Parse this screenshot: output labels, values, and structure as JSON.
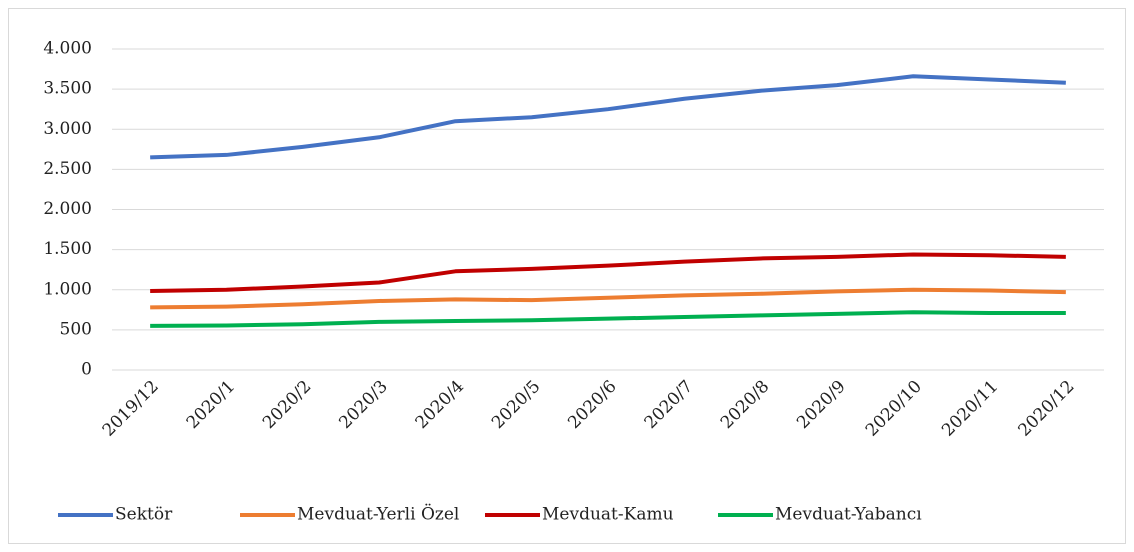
{
  "chart_data": {
    "type": "line",
    "categories": [
      "2019/12",
      "2020/1",
      "2020/2",
      "2020/3",
      "2020/4",
      "2020/5",
      "2020/6",
      "2020/7",
      "2020/8",
      "2020/9",
      "2020/10",
      "2020/11",
      "2020/12"
    ],
    "series": [
      {
        "name": "Sektör",
        "color": "#4472c4",
        "values": [
          2650,
          2680,
          2780,
          2900,
          3100,
          3150,
          3250,
          3380,
          3480,
          3550,
          3660,
          3620,
          3580
        ]
      },
      {
        "name": "Mevduat-Yerli Özel",
        "color": "#ed7d31",
        "values": [
          780,
          790,
          820,
          860,
          880,
          870,
          900,
          930,
          950,
          980,
          1000,
          990,
          970
        ]
      },
      {
        "name": "Mevduat-Kamu",
        "color": "#c00000",
        "values": [
          985,
          1000,
          1040,
          1090,
          1230,
          1260,
          1300,
          1350,
          1390,
          1410,
          1440,
          1430,
          1410
        ]
      },
      {
        "name": "Mevduat-Yabancı",
        "color": "#00b050",
        "values": [
          550,
          555,
          570,
          600,
          610,
          620,
          640,
          660,
          680,
          700,
          720,
          710,
          710
        ]
      }
    ],
    "ylim": [
      0,
      4000
    ],
    "yticks": [
      0,
      500,
      {
        "value": 1000,
        "label": "1.000"
      },
      {
        "value": 1500,
        "label": "1.500"
      },
      {
        "value": 2000,
        "label": "2.000"
      },
      {
        "value": 2500,
        "label": "2.500"
      },
      {
        "value": 3000,
        "label": "3.000"
      },
      {
        "value": 3500,
        "label": "3.500"
      },
      {
        "value": 4000,
        "label": "4.000"
      }
    ],
    "grid": true,
    "legend": "bottom"
  }
}
